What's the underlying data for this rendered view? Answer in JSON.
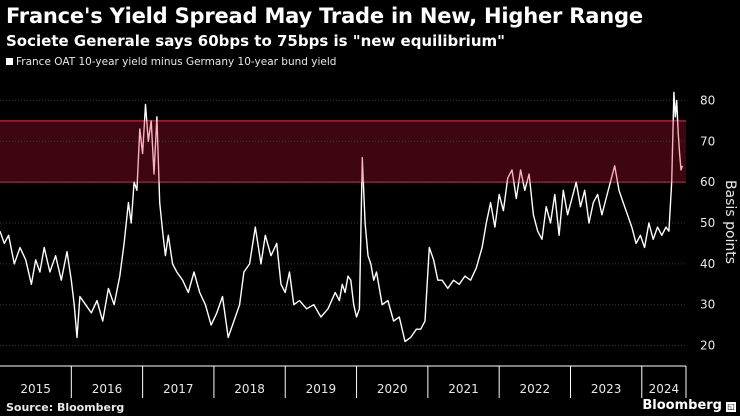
{
  "chart_data": {
    "type": "line",
    "title": "France's Yield Spread May Trade in New, Higher Range",
    "subtitle": "Societe Generale says 60bps to 75bps is \"new equilibrium\"",
    "legend": "France OAT 10-year yield minus Germany 10-year bund yield",
    "ylabel": "Basis points",
    "ylim": [
      15,
      85
    ],
    "yticks": [
      "20",
      "30",
      "40",
      "50",
      "60",
      "70",
      "80"
    ],
    "xlim": [
      2015.0,
      2024.62
    ],
    "xticks": [
      "2015",
      "2016",
      "2017",
      "2018",
      "2019",
      "2020",
      "2021",
      "2022",
      "2023",
      "2024"
    ],
    "band": {
      "low": 60,
      "high": 75,
      "label": "60bps to 75bps new equilibrium range"
    },
    "series": [
      {
        "name": "France OAT 10-year yield minus Germany 10-year bund yield",
        "x": [
          2015.0,
          2015.06,
          2015.12,
          2015.2,
          2015.28,
          2015.36,
          2015.44,
          2015.5,
          2015.56,
          2015.62,
          2015.7,
          2015.78,
          2015.86,
          2015.94,
          2016.0,
          2016.04,
          2016.08,
          2016.12,
          2016.2,
          2016.28,
          2016.36,
          2016.44,
          2016.52,
          2016.6,
          2016.68,
          2016.74,
          2016.8,
          2016.84,
          2016.88,
          2016.92,
          2016.96,
          2017.0,
          2017.04,
          2017.08,
          2017.12,
          2017.16,
          2017.2,
          2017.24,
          2017.28,
          2017.32,
          2017.36,
          2017.42,
          2017.48,
          2017.56,
          2017.64,
          2017.72,
          2017.8,
          2017.88,
          2017.96,
          2018.04,
          2018.12,
          2018.2,
          2018.28,
          2018.36,
          2018.42,
          2018.5,
          2018.58,
          2018.66,
          2018.72,
          2018.8,
          2018.88,
          2018.94,
          2019.0,
          2019.06,
          2019.12,
          2019.2,
          2019.3,
          2019.4,
          2019.5,
          2019.6,
          2019.7,
          2019.76,
          2019.8,
          2019.84,
          2019.88,
          2019.92,
          2019.96,
          2020.0,
          2020.04,
          2020.08,
          2020.12,
          2020.16,
          2020.2,
          2020.24,
          2020.28,
          2020.36,
          2020.44,
          2020.52,
          2020.6,
          2020.68,
          2020.76,
          2020.84,
          2020.9,
          2020.96,
          2021.02,
          2021.08,
          2021.14,
          2021.2,
          2021.28,
          2021.36,
          2021.44,
          2021.52,
          2021.6,
          2021.68,
          2021.76,
          2021.82,
          2021.88,
          2021.94,
          2022.0,
          2022.06,
          2022.12,
          2022.18,
          2022.24,
          2022.3,
          2022.36,
          2022.42,
          2022.48,
          2022.54,
          2022.6,
          2022.66,
          2022.72,
          2022.78,
          2022.84,
          2022.9,
          2022.96,
          2023.02,
          2023.08,
          2023.14,
          2023.2,
          2023.26,
          2023.32,
          2023.38,
          2023.44,
          2023.5,
          2023.56,
          2023.62,
          2023.68,
          2023.74,
          2023.8,
          2023.86,
          2023.92,
          2023.98,
          2024.04,
          2024.1,
          2024.16,
          2024.22,
          2024.28,
          2024.34,
          2024.38,
          2024.42,
          2024.45,
          2024.47,
          2024.49,
          2024.51,
          2024.53,
          2024.55,
          2024.57
        ],
        "values": [
          48,
          45,
          47,
          40,
          44,
          41,
          35,
          41,
          38,
          44,
          38,
          42,
          36,
          43,
          36,
          30,
          22,
          32,
          30,
          28,
          31,
          26,
          34,
          30,
          37,
          45,
          55,
          50,
          60,
          58,
          73,
          67,
          79,
          70,
          75,
          62,
          76,
          55,
          48,
          42,
          47,
          40,
          38,
          36,
          33,
          38,
          33,
          30,
          25,
          28,
          32,
          22,
          26,
          30,
          38,
          40,
          49,
          40,
          47,
          42,
          45,
          35,
          33,
          38,
          30,
          31,
          29,
          30,
          27,
          29,
          33,
          31,
          35,
          33,
          37,
          36,
          30,
          27,
          29,
          66,
          50,
          42,
          40,
          36,
          38,
          30,
          31,
          26,
          27,
          21,
          22,
          24,
          24,
          26,
          44,
          41,
          36,
          36,
          34,
          36,
          35,
          37,
          36,
          39,
          44,
          50,
          55,
          49,
          57,
          53,
          61,
          63,
          56,
          63,
          58,
          62,
          52,
          48,
          46,
          54,
          50,
          57,
          47,
          58,
          52,
          56,
          60,
          54,
          58,
          50,
          55,
          57,
          52,
          56,
          60,
          64,
          58,
          55,
          52,
          49,
          45,
          47,
          44,
          50,
          46,
          49,
          47,
          49,
          48,
          60,
          82,
          76,
          80,
          72,
          67,
          63,
          64
        ]
      }
    ]
  },
  "footer": {
    "source": "Source: Bloomberg",
    "brand": "Bloomberg"
  }
}
